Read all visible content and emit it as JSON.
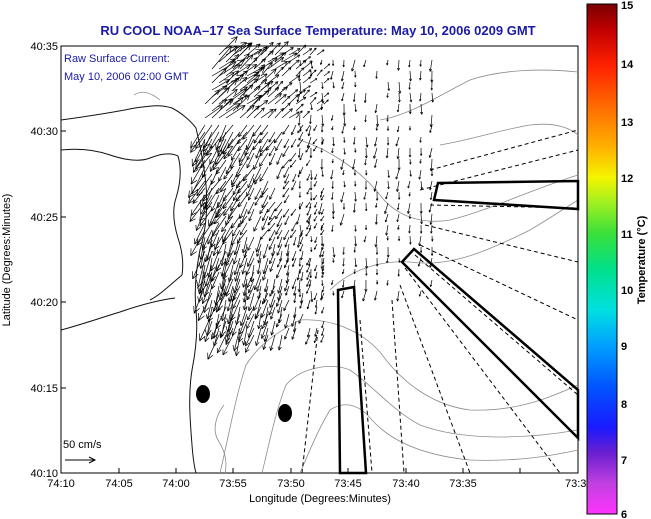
{
  "chart_data": {
    "type": "map",
    "title": "RU COOL  NOAA–17  Sea Surface Temperature:  May 10, 2006 0209 GMT",
    "annotations": [
      "Raw Surface Current:",
      "May 10, 2006 02:00 GMT"
    ],
    "scale_label": "50 cm/s",
    "xlabel": "Longitude (Degrees:Minutes)",
    "ylabel": "Latitude (Degrees:Minutes)",
    "x_ticks": [
      "74:10",
      "74:05",
      "74:00",
      "73:55",
      "73:50",
      "73:45",
      "73:40",
      "73:35",
      "73:3"
    ],
    "y_ticks": [
      "40:10",
      "40:15",
      "40:20",
      "40:25",
      "40:30",
      "40:35"
    ],
    "colorbar": {
      "label": "Temperature (°C)",
      "ticks": [
        "6",
        "7",
        "8",
        "9",
        "10",
        "11",
        "12",
        "13",
        "14",
        "15"
      ],
      "range": [
        6,
        15
      ]
    },
    "colors": {
      "title": "#1a1aa6",
      "annotation": "#1a1aa6",
      "arrows": "#000000",
      "coastline": "#111111",
      "bathymetry": "#8c8c8c"
    },
    "grid": false
  }
}
